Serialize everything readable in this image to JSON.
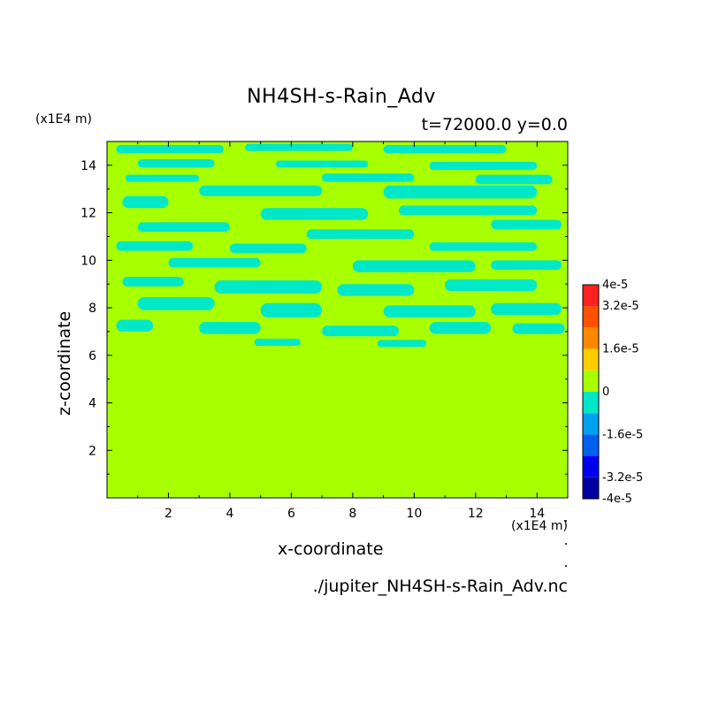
{
  "chart_data": {
    "type": "heatmap",
    "title": "NH4SH-s-Rain_Adv",
    "subtitle": "t=72000.0 y=0.0",
    "xlabel": "x-coordinate",
    "ylabel": "z-coordinate",
    "x_units": "(x1E4 m)",
    "y_units": "(x1E4 m)",
    "file_label": "./jupiter_NH4SH-s-Rain_Adv.nc",
    "xlim": [
      0,
      15
    ],
    "ylim": [
      0,
      15
    ],
    "x_ticks": [
      "2",
      "4",
      "6",
      "8",
      "10",
      "12",
      "14"
    ],
    "y_ticks": [
      "2",
      "4",
      "6",
      "8",
      "10",
      "12",
      "14"
    ],
    "colorbar": {
      "levels": [
        -4e-05,
        -3.2e-05,
        -2.4e-05,
        -1.6e-05,
        -8e-06,
        0,
        8e-06,
        1.6e-05,
        2.4e-05,
        3.2e-05,
        4e-05
      ],
      "colors": [
        "#0000a0",
        "#0000ee",
        "#0060f0",
        "#00a0f0",
        "#00e8c8",
        "#a8ff00",
        "#ffcc00",
        "#ff8800",
        "#ff5000",
        "#ff2020"
      ],
      "tick_labels": [
        "4e-5",
        "3.2e-5",
        "1.6e-5",
        "0",
        "-1.6e-5",
        "-3.2e-5",
        "-4e-5"
      ],
      "tick_values": [
        4e-05,
        3.2e-05,
        1.6e-05,
        0,
        -1.6e-05,
        -3.2e-05,
        -4e-05
      ]
    },
    "field": {
      "background_value": 0,
      "background_color": "#a8ff00",
      "patch_value": -8e-06,
      "patch_color": "#00e8c8",
      "patch_band_z": [
        6.3,
        15
      ],
      "patches": [
        {
          "x": 0.3,
          "z": 14.5,
          "w": 3.5,
          "h": 0.35
        },
        {
          "x": 4.5,
          "z": 14.6,
          "w": 3.5,
          "h": 0.3
        },
        {
          "x": 9.0,
          "z": 14.5,
          "w": 4.0,
          "h": 0.35
        },
        {
          "x": 1.0,
          "z": 13.9,
          "w": 2.5,
          "h": 0.35
        },
        {
          "x": 5.5,
          "z": 13.9,
          "w": 3.0,
          "h": 0.3
        },
        {
          "x": 10.5,
          "z": 13.8,
          "w": 3.5,
          "h": 0.35
        },
        {
          "x": 0.6,
          "z": 13.3,
          "w": 2.4,
          "h": 0.3
        },
        {
          "x": 7.0,
          "z": 13.3,
          "w": 3.0,
          "h": 0.35
        },
        {
          "x": 12.0,
          "z": 13.2,
          "w": 2.5,
          "h": 0.4
        },
        {
          "x": 3.0,
          "z": 12.7,
          "w": 4.0,
          "h": 0.45
        },
        {
          "x": 9.0,
          "z": 12.6,
          "w": 5.0,
          "h": 0.55
        },
        {
          "x": 0.5,
          "z": 12.2,
          "w": 1.5,
          "h": 0.5
        },
        {
          "x": 5.0,
          "z": 11.7,
          "w": 3.5,
          "h": 0.5
        },
        {
          "x": 9.5,
          "z": 11.9,
          "w": 4.5,
          "h": 0.4
        },
        {
          "x": 1.0,
          "z": 11.2,
          "w": 3.0,
          "h": 0.4
        },
        {
          "x": 12.5,
          "z": 11.3,
          "w": 2.3,
          "h": 0.4
        },
        {
          "x": 6.5,
          "z": 10.9,
          "w": 3.5,
          "h": 0.4
        },
        {
          "x": 0.3,
          "z": 10.4,
          "w": 2.5,
          "h": 0.4
        },
        {
          "x": 4.0,
          "z": 10.3,
          "w": 2.5,
          "h": 0.4
        },
        {
          "x": 10.5,
          "z": 10.4,
          "w": 3.5,
          "h": 0.35
        },
        {
          "x": 2.0,
          "z": 9.7,
          "w": 3.0,
          "h": 0.4
        },
        {
          "x": 8.0,
          "z": 9.5,
          "w": 4.0,
          "h": 0.5
        },
        {
          "x": 12.5,
          "z": 9.6,
          "w": 2.3,
          "h": 0.4
        },
        {
          "x": 0.5,
          "z": 8.9,
          "w": 2.0,
          "h": 0.4
        },
        {
          "x": 3.5,
          "z": 8.6,
          "w": 3.5,
          "h": 0.55
        },
        {
          "x": 7.5,
          "z": 8.5,
          "w": 2.5,
          "h": 0.5
        },
        {
          "x": 11.0,
          "z": 8.7,
          "w": 3.0,
          "h": 0.5
        },
        {
          "x": 1.0,
          "z": 7.9,
          "w": 2.5,
          "h": 0.55
        },
        {
          "x": 5.0,
          "z": 7.6,
          "w": 2.0,
          "h": 0.6
        },
        {
          "x": 9.0,
          "z": 7.6,
          "w": 3.0,
          "h": 0.5
        },
        {
          "x": 12.5,
          "z": 7.7,
          "w": 2.3,
          "h": 0.5
        },
        {
          "x": 0.3,
          "z": 7.0,
          "w": 1.2,
          "h": 0.5
        },
        {
          "x": 3.0,
          "z": 6.9,
          "w": 2.0,
          "h": 0.5
        },
        {
          "x": 7.0,
          "z": 6.8,
          "w": 2.5,
          "h": 0.45
        },
        {
          "x": 10.5,
          "z": 6.9,
          "w": 2.0,
          "h": 0.5
        },
        {
          "x": 4.8,
          "z": 6.4,
          "w": 1.5,
          "h": 0.3
        },
        {
          "x": 8.8,
          "z": 6.35,
          "w": 1.6,
          "h": 0.3
        },
        {
          "x": 13.2,
          "z": 6.9,
          "w": 1.7,
          "h": 0.45
        }
      ]
    }
  }
}
